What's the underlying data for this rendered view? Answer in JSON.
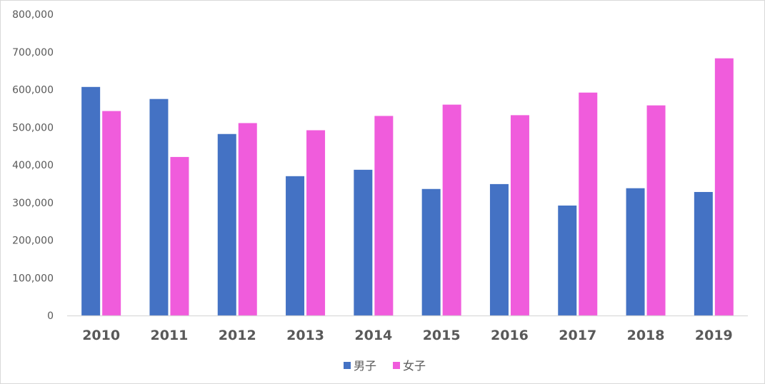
{
  "chart_data": {
    "type": "bar",
    "categories": [
      "2010",
      "2011",
      "2012",
      "2013",
      "2014",
      "2015",
      "2016",
      "2017",
      "2018",
      "2019"
    ],
    "series": [
      {
        "name": "男子",
        "color": "#4472C4",
        "values": [
          607000,
          575000,
          482000,
          370000,
          387000,
          336000,
          349000,
          292000,
          338000,
          328000
        ]
      },
      {
        "name": "女子",
        "color": "#F05CDC",
        "values": [
          543000,
          421000,
          511000,
          492000,
          530000,
          560000,
          532000,
          592000,
          558000,
          683000
        ]
      }
    ],
    "ylim": [
      0,
      800000
    ],
    "yticks": [
      "0",
      "100,000",
      "200,000",
      "300,000",
      "400,000",
      "500,000",
      "600,000",
      "700,000",
      "800,000"
    ],
    "grid": false,
    "legend_position": "bottom-center",
    "title": "",
    "xlabel": "",
    "ylabel": ""
  }
}
